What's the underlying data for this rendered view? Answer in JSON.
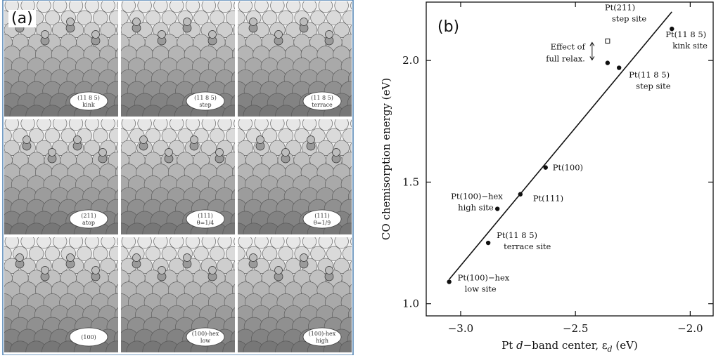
{
  "panel_a": {
    "tag": "(a)",
    "cells": [
      {
        "label1": "(11 8 5)",
        "label2": "kink"
      },
      {
        "label1": "(11 8 5)",
        "label2": "step"
      },
      {
        "label1": "(11 8 5)",
        "label2": "terrace"
      },
      {
        "label1": "(211)",
        "label2": "atop"
      },
      {
        "label1": "(111)",
        "label2": "θ=1/4"
      },
      {
        "label1": "(111)",
        "label2": "θ=1/9"
      },
      {
        "label1": "(100)",
        "label2": ""
      },
      {
        "label1": "(100)-hex",
        "label2": "low"
      },
      {
        "label1": "(100)-hex",
        "label2": "high"
      }
    ],
    "colors": {
      "frame": "#4a7fb0",
      "adsorbate": "#9a9a9a",
      "surface": "#f2f2f2"
    }
  },
  "panel_b": {
    "tag": "(b)",
    "effect_label_1": "Effect of",
    "effect_label_2": "full relax."
  },
  "chart_data": {
    "type": "scatter",
    "xlabel_prefix": "Pt ",
    "xlabel_italic": "d",
    "xlabel_suffix": "−band center, ε",
    "xlabel_sub": "d",
    "xlabel_unit": " (eV)",
    "ylabel": "CO chemisorption energy (eV)",
    "xlim": [
      -3.15,
      -1.9
    ],
    "ylim": [
      0.95,
      2.24
    ],
    "xticks": [
      -3.0,
      -2.5,
      -2.0
    ],
    "xtick_labels": [
      "−3.0",
      "−2.5",
      "−2.0"
    ],
    "yticks": [
      1.0,
      1.5,
      2.0
    ],
    "ytick_labels": [
      "1.0",
      "1.5",
      "2.0"
    ],
    "fit_line": {
      "x": [
        -3.05,
        -2.08
      ],
      "y": [
        1.1,
        2.2
      ]
    },
    "points": [
      {
        "x": -3.05,
        "y": 1.09,
        "filled": true,
        "label1": "Pt(100)−hex",
        "label2": "low site"
      },
      {
        "x": -2.88,
        "y": 1.25,
        "filled": true,
        "label1": "Pt(11 8 5)",
        "label2": "terrace site"
      },
      {
        "x": -2.84,
        "y": 1.39,
        "filled": true,
        "label1": "Pt(100)−hex",
        "label2": "high site"
      },
      {
        "x": -2.74,
        "y": 1.45,
        "filled": true,
        "label1": "Pt(111)",
        "label2": ""
      },
      {
        "x": -2.63,
        "y": 1.56,
        "filled": true,
        "label1": "Pt(100)",
        "label2": ""
      },
      {
        "x": -2.31,
        "y": 1.97,
        "filled": true,
        "label1": "Pt(11 8 5)",
        "label2": "step site"
      },
      {
        "x": -2.36,
        "y": 1.99,
        "filled": true,
        "label1": "",
        "label2": ""
      },
      {
        "x": -2.36,
        "y": 2.08,
        "filled": false,
        "label1": "Pt(211)",
        "label2": "step site"
      },
      {
        "x": -2.08,
        "y": 2.13,
        "filled": true,
        "label1": "Pt(11 8 5)",
        "label2": "kink site"
      }
    ]
  }
}
